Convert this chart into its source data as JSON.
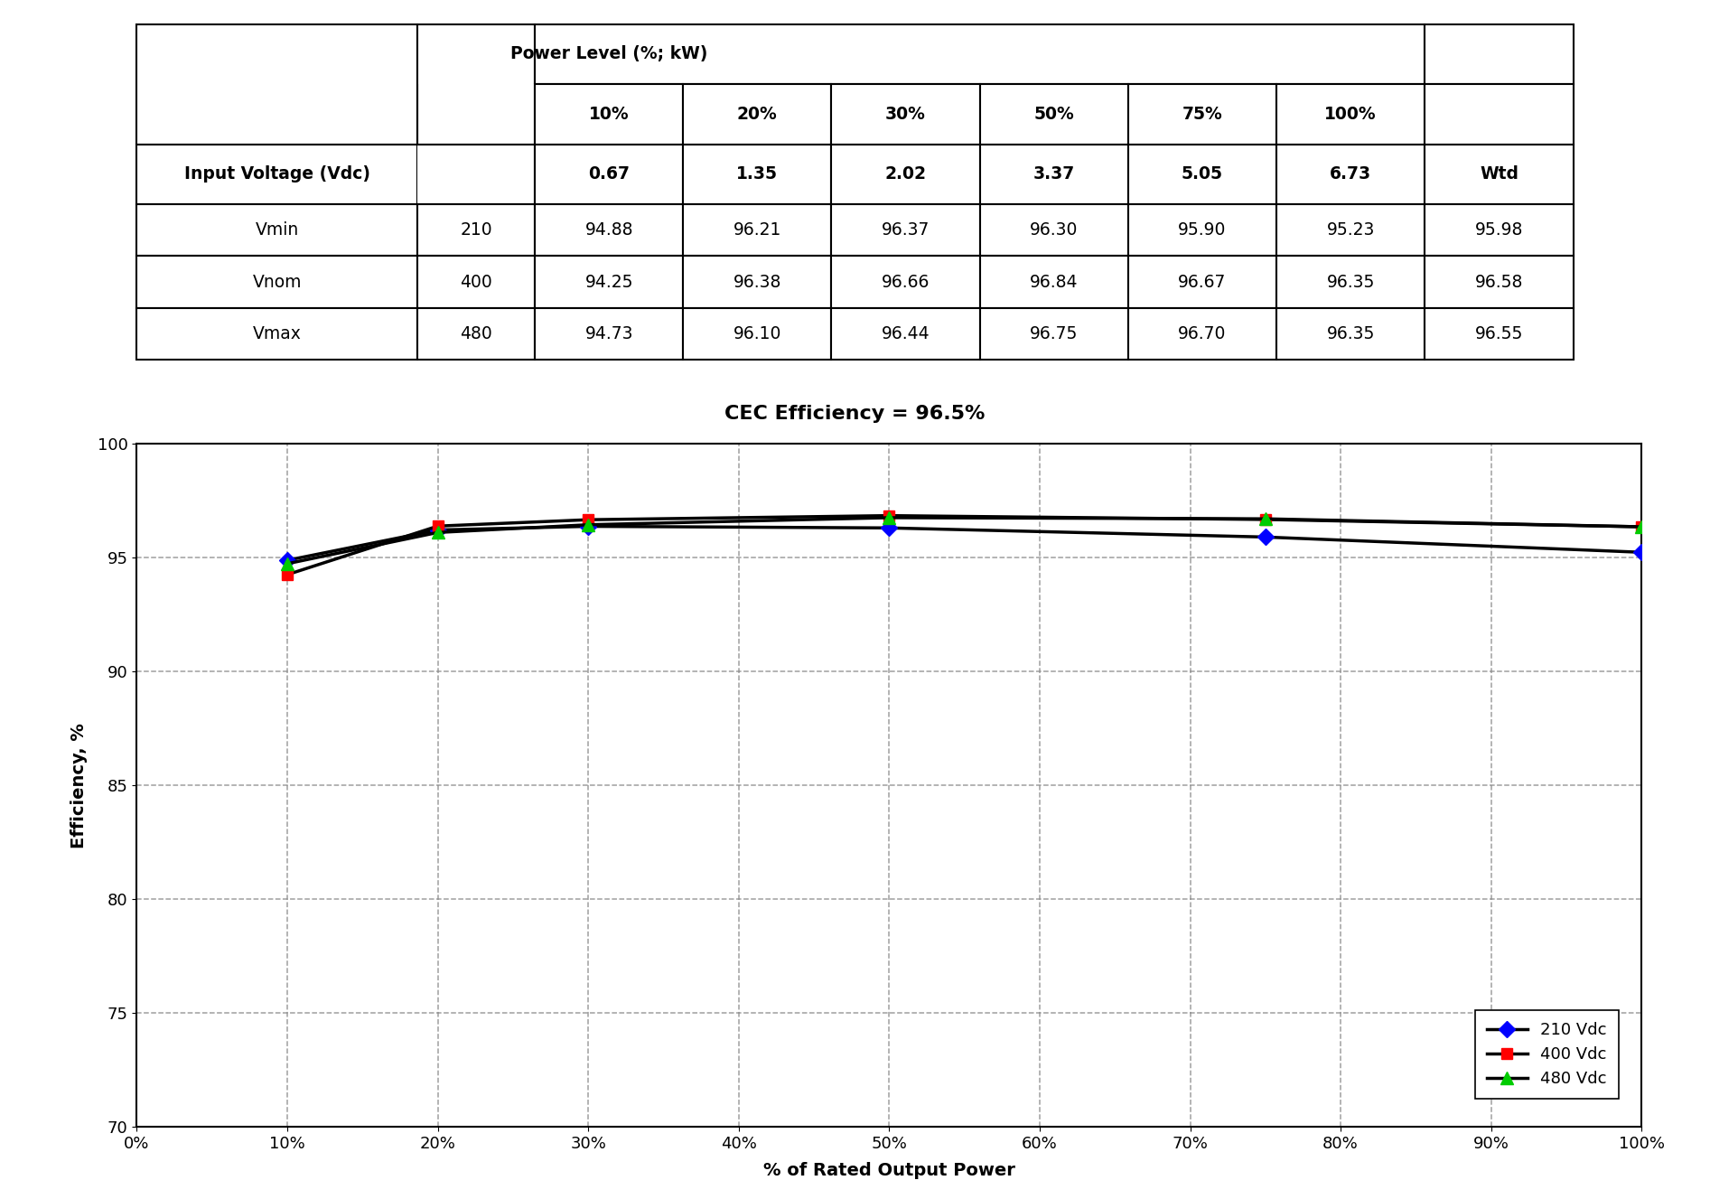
{
  "title_cec": "CEC Efficiency = 96.5%",
  "xlabel": "% of Rated Output Power",
  "ylabel": "Efficiency, %",
  "x_percents": [
    10,
    20,
    30,
    50,
    75,
    100
  ],
  "x_labels": [
    "0%",
    "10%",
    "20%",
    "30%",
    "40%",
    "50%",
    "60%",
    "70%",
    "80%",
    "90%",
    "100%"
  ],
  "x_ticks": [
    0,
    10,
    20,
    30,
    40,
    50,
    60,
    70,
    80,
    90,
    100
  ],
  "ylim": [
    70,
    100
  ],
  "yticks": [
    70,
    75,
    80,
    85,
    90,
    95,
    100
  ],
  "series_names": [
    "210 Vdc",
    "400 Vdc",
    "480 Vdc"
  ],
  "series_colors": [
    "#0000ff",
    "#ff0000",
    "#00cc00"
  ],
  "series_markers": [
    "D",
    "s",
    "^"
  ],
  "series_values": [
    [
      94.88,
      96.21,
      96.37,
      96.3,
      95.9,
      95.23
    ],
    [
      94.25,
      96.38,
      96.66,
      96.84,
      96.67,
      96.35
    ],
    [
      94.73,
      96.1,
      96.44,
      96.75,
      96.7,
      96.35
    ]
  ],
  "bg_color": "#ffffff",
  "line_color": "#000000",
  "grid_color": "#888888",
  "table_cell_text": [
    [
      "",
      "",
      "Power Level (%; kW)",
      "",
      "",
      "",
      "",
      "",
      ""
    ],
    [
      "",
      "",
      "10%",
      "20%",
      "30%",
      "50%",
      "75%",
      "100%",
      ""
    ],
    [
      "Input Voltage (Vdc)",
      "",
      "0.67",
      "1.35",
      "2.02",
      "3.37",
      "5.05",
      "6.73",
      "Wtd"
    ],
    [
      "Vmin",
      "210",
      "94.88",
      "96.21",
      "96.37",
      "96.30",
      "95.90",
      "95.23",
      "95.98"
    ],
    [
      "Vnom",
      "400",
      "94.25",
      "96.38",
      "96.66",
      "96.84",
      "96.67",
      "96.35",
      "96.58"
    ],
    [
      "Vmax",
      "480",
      "94.73",
      "96.10",
      "96.44",
      "96.75",
      "96.70",
      "96.35",
      "96.55"
    ]
  ],
  "col_widths": [
    0.155,
    0.065,
    0.082,
    0.082,
    0.082,
    0.082,
    0.082,
    0.082,
    0.082
  ]
}
